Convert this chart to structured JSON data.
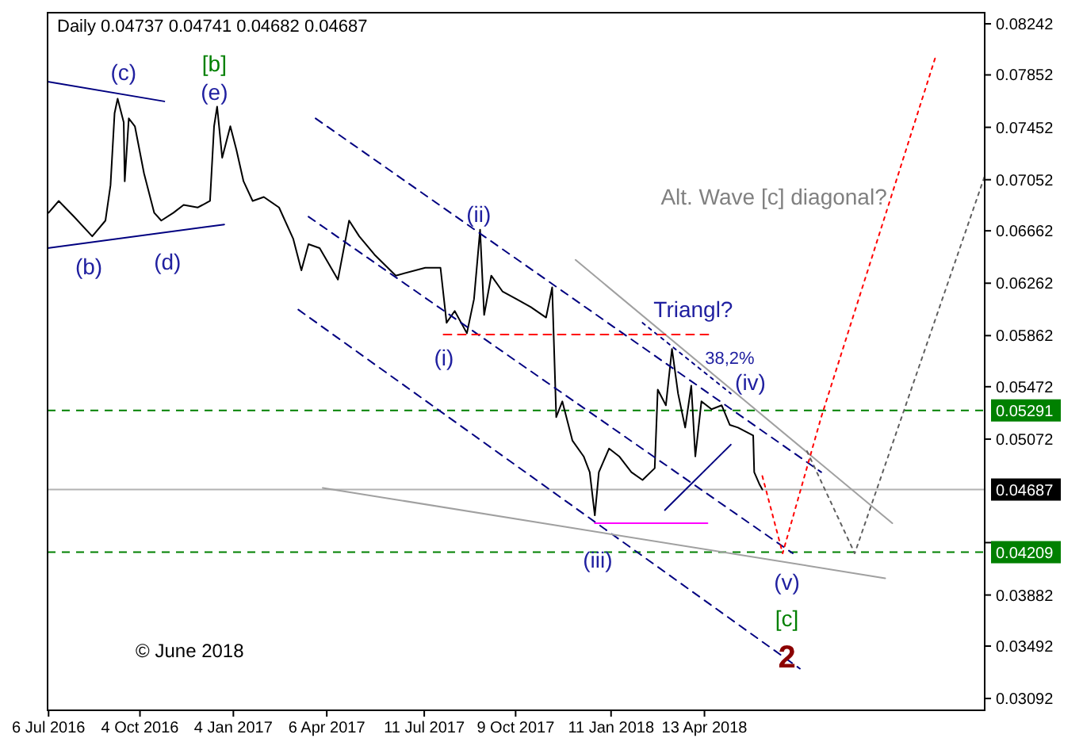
{
  "chart_data": {
    "type": "line",
    "title": "Daily 0.04737 0.04741 0.04682 0.04687",
    "xlim": [
      "2016-07-05",
      "2019-01-14"
    ],
    "ylim": [
      0.03002,
      0.08327
    ],
    "xticks": [
      {
        "value": "2016-07-06",
        "label": "6 Jul 2016"
      },
      {
        "value": "2016-10-04",
        "label": "4 Oct 2016"
      },
      {
        "value": "2017-01-04",
        "label": "4 Jan 2017"
      },
      {
        "value": "2017-04-06",
        "label": "6 Apr 2017"
      },
      {
        "value": "2017-07-11",
        "label": "11 Jul 2017"
      },
      {
        "value": "2017-10-09",
        "label": "9 Oct 2017"
      },
      {
        "value": "2018-01-11",
        "label": "11 Jan 2018"
      },
      {
        "value": "2018-04-13",
        "label": "13 Apr 2018"
      }
    ],
    "yticks": [
      0.03092,
      0.03492,
      0.03882,
      {
        "value": 0.04282,
        "label": null
      },
      0.05072,
      0.05472,
      0.05862,
      0.06262,
      0.06662,
      0.07052,
      0.07452,
      0.07852,
      0.08242
    ],
    "grid": false,
    "series": [
      {
        "color": "#000000",
        "line_style": "solid",
        "x": [
          "2016-07-06",
          "2016-07-16",
          "2016-07-31",
          "2016-08-18",
          "2016-08-31",
          "2016-09-05",
          "2016-09-09",
          "2016-09-12",
          "2016-09-18",
          "2016-09-19",
          "2016-09-23",
          "2016-09-29",
          "2016-10-08",
          "2016-10-18",
          "2016-10-25",
          "2016-11-06",
          "2016-11-16",
          "2016-11-30",
          "2016-12-12",
          "2016-12-16",
          "2016-12-19",
          "2016-12-24",
          "2017-01-01",
          "2017-01-07",
          "2017-01-14",
          "2017-01-23",
          "2017-02-03",
          "2017-02-18",
          "2017-03-04",
          "2017-03-12",
          "2017-03-19",
          "2017-03-30",
          "2017-04-17",
          "2017-04-28",
          "2017-05-08",
          "2017-05-23",
          "2017-06-13",
          "2017-07-12",
          "2017-07-27",
          "2017-08-02",
          "2017-08-10",
          "2017-08-22",
          "2017-08-29",
          "2017-09-04",
          "2017-09-08",
          "2017-09-15",
          "2017-09-26",
          "2017-10-10",
          "2017-10-24",
          "2017-11-08",
          "2017-11-14",
          "2017-11-18",
          "2017-11-24",
          "2017-12-04",
          "2017-12-15",
          "2017-12-21",
          "2017-12-26",
          "2017-12-30",
          "2018-01-09",
          "2018-01-19",
          "2018-01-31",
          "2018-02-11",
          "2018-02-23",
          "2018-02-26",
          "2018-03-06",
          "2018-03-12",
          "2018-03-18",
          "2018-03-25",
          "2018-03-31",
          "2018-04-04",
          "2018-04-10",
          "2018-04-20",
          "2018-04-30",
          "2018-05-08",
          "2018-05-16",
          "2018-05-31",
          "2018-06-01",
          "2018-06-06",
          "2018-06-09"
        ],
        "values": [
          0.068,
          0.0689,
          0.0677,
          0.0662,
          0.0674,
          0.0701,
          0.0756,
          0.0767,
          0.0749,
          0.0704,
          0.0752,
          0.0746,
          0.071,
          0.068,
          0.0674,
          0.068,
          0.0686,
          0.0684,
          0.0689,
          0.0746,
          0.0761,
          0.0722,
          0.0746,
          0.0728,
          0.0704,
          0.0689,
          0.0692,
          0.0684,
          0.066,
          0.0636,
          0.0656,
          0.0653,
          0.0629,
          0.0674,
          0.0662,
          0.0648,
          0.0632,
          0.0638,
          0.0638,
          0.0596,
          0.0605,
          0.0588,
          0.0614,
          0.0667,
          0.0602,
          0.0632,
          0.062,
          0.0614,
          0.0608,
          0.06,
          0.0623,
          0.0524,
          0.0536,
          0.0506,
          0.0494,
          0.0482,
          0.0449,
          0.0482,
          0.05,
          0.0494,
          0.0482,
          0.0476,
          0.0485,
          0.0545,
          0.0533,
          0.0576,
          0.0542,
          0.0516,
          0.0548,
          0.0494,
          0.0536,
          0.053,
          0.0533,
          0.0518,
          0.0516,
          0.051,
          0.0482,
          0.0473,
          0.04687
        ]
      },
      {
        "color": "#000080",
        "line_style": "solid",
        "x": [
          "2016-07-05",
          "2016-10-28"
        ],
        "values": [
          0.078,
          0.0765
        ]
      },
      {
        "color": "#000080",
        "line_style": "solid",
        "x": [
          "2016-07-05",
          "2016-12-26"
        ],
        "values": [
          0.0653,
          0.0671
        ]
      },
      {
        "color": "#000080",
        "line_style": "dashed",
        "x": [
          "2017-03-26",
          "2018-08-06"
        ],
        "values": [
          0.0752,
          0.0482
        ]
      },
      {
        "color": "#000080",
        "line_style": "dashed",
        "x": [
          "2017-03-19",
          "2018-07-09"
        ],
        "values": [
          0.0677,
          0.042
        ]
      },
      {
        "color": "#000080",
        "line_style": "dashed",
        "x": [
          "2017-03-09",
          "2018-07-16"
        ],
        "values": [
          0.0606,
          0.0332
        ]
      },
      {
        "color": "#000080",
        "line_style": "dotted",
        "x": [
          "2018-02-11",
          "2018-05-09"
        ],
        "values": [
          0.0596,
          0.0542
        ]
      },
      {
        "color": "#000080",
        "line_style": "solid",
        "x": [
          "2018-03-05",
          "2018-05-09"
        ],
        "values": [
          0.0453,
          0.0503
        ]
      },
      {
        "color": "#a0a0a0",
        "line_style": "solid",
        "x": [
          "2017-12-07",
          "2018-10-15"
        ],
        "values": [
          0.0644,
          0.0443
        ]
      },
      {
        "color": "#a0a0a0",
        "line_style": "solid",
        "x": [
          "2017-04-02",
          "2018-10-08"
        ],
        "values": [
          0.047,
          0.0401
        ]
      },
      {
        "color": "#ff0000",
        "line_style": "dashed",
        "x": [
          "2017-07-30",
          "2018-04-20"
        ],
        "values": [
          0.0587,
          0.0587
        ]
      },
      {
        "color": "#ff00ff",
        "line_style": "solid",
        "x": [
          "2017-12-26",
          "2018-04-16"
        ],
        "values": [
          0.0443,
          0.0443
        ]
      },
      {
        "color": "#ff0000",
        "line_style": "dotted",
        "x": [
          "2018-06-09",
          "2018-06-29",
          "2018-08-06",
          "2018-11-27"
        ],
        "values": [
          0.0479,
          0.042,
          0.0524,
          0.08
        ]
      },
      {
        "color": "#606060",
        "line_style": "dotted",
        "x": [
          "2018-07-23",
          "2018-09-08",
          "2019-01-14"
        ],
        "values": [
          0.0498,
          0.042,
          0.0708
        ]
      }
    ],
    "ref_lines": [
      {
        "axis": "y",
        "value": 0.05291,
        "label": "0.05291",
        "color": "#008000",
        "line_style": "dashed"
      },
      {
        "axis": "y",
        "value": 0.04209,
        "label": "0.04209",
        "color": "#008000",
        "line_style": "dashed"
      },
      {
        "axis": "y",
        "value": 0.04687,
        "label": "0.04687",
        "color": "#000000",
        "line_style": "solid"
      }
    ],
    "annotations": [
      "(c)",
      "(b)",
      "(d)",
      "[b]",
      "(e)",
      "(ii)",
      "(i)",
      "(iii)",
      "Triangl?",
      "38,2%",
      "(iv)",
      "(v)",
      "[c]",
      "2",
      "Alt. Wave [c] diagonal?",
      "© June 2018"
    ]
  }
}
